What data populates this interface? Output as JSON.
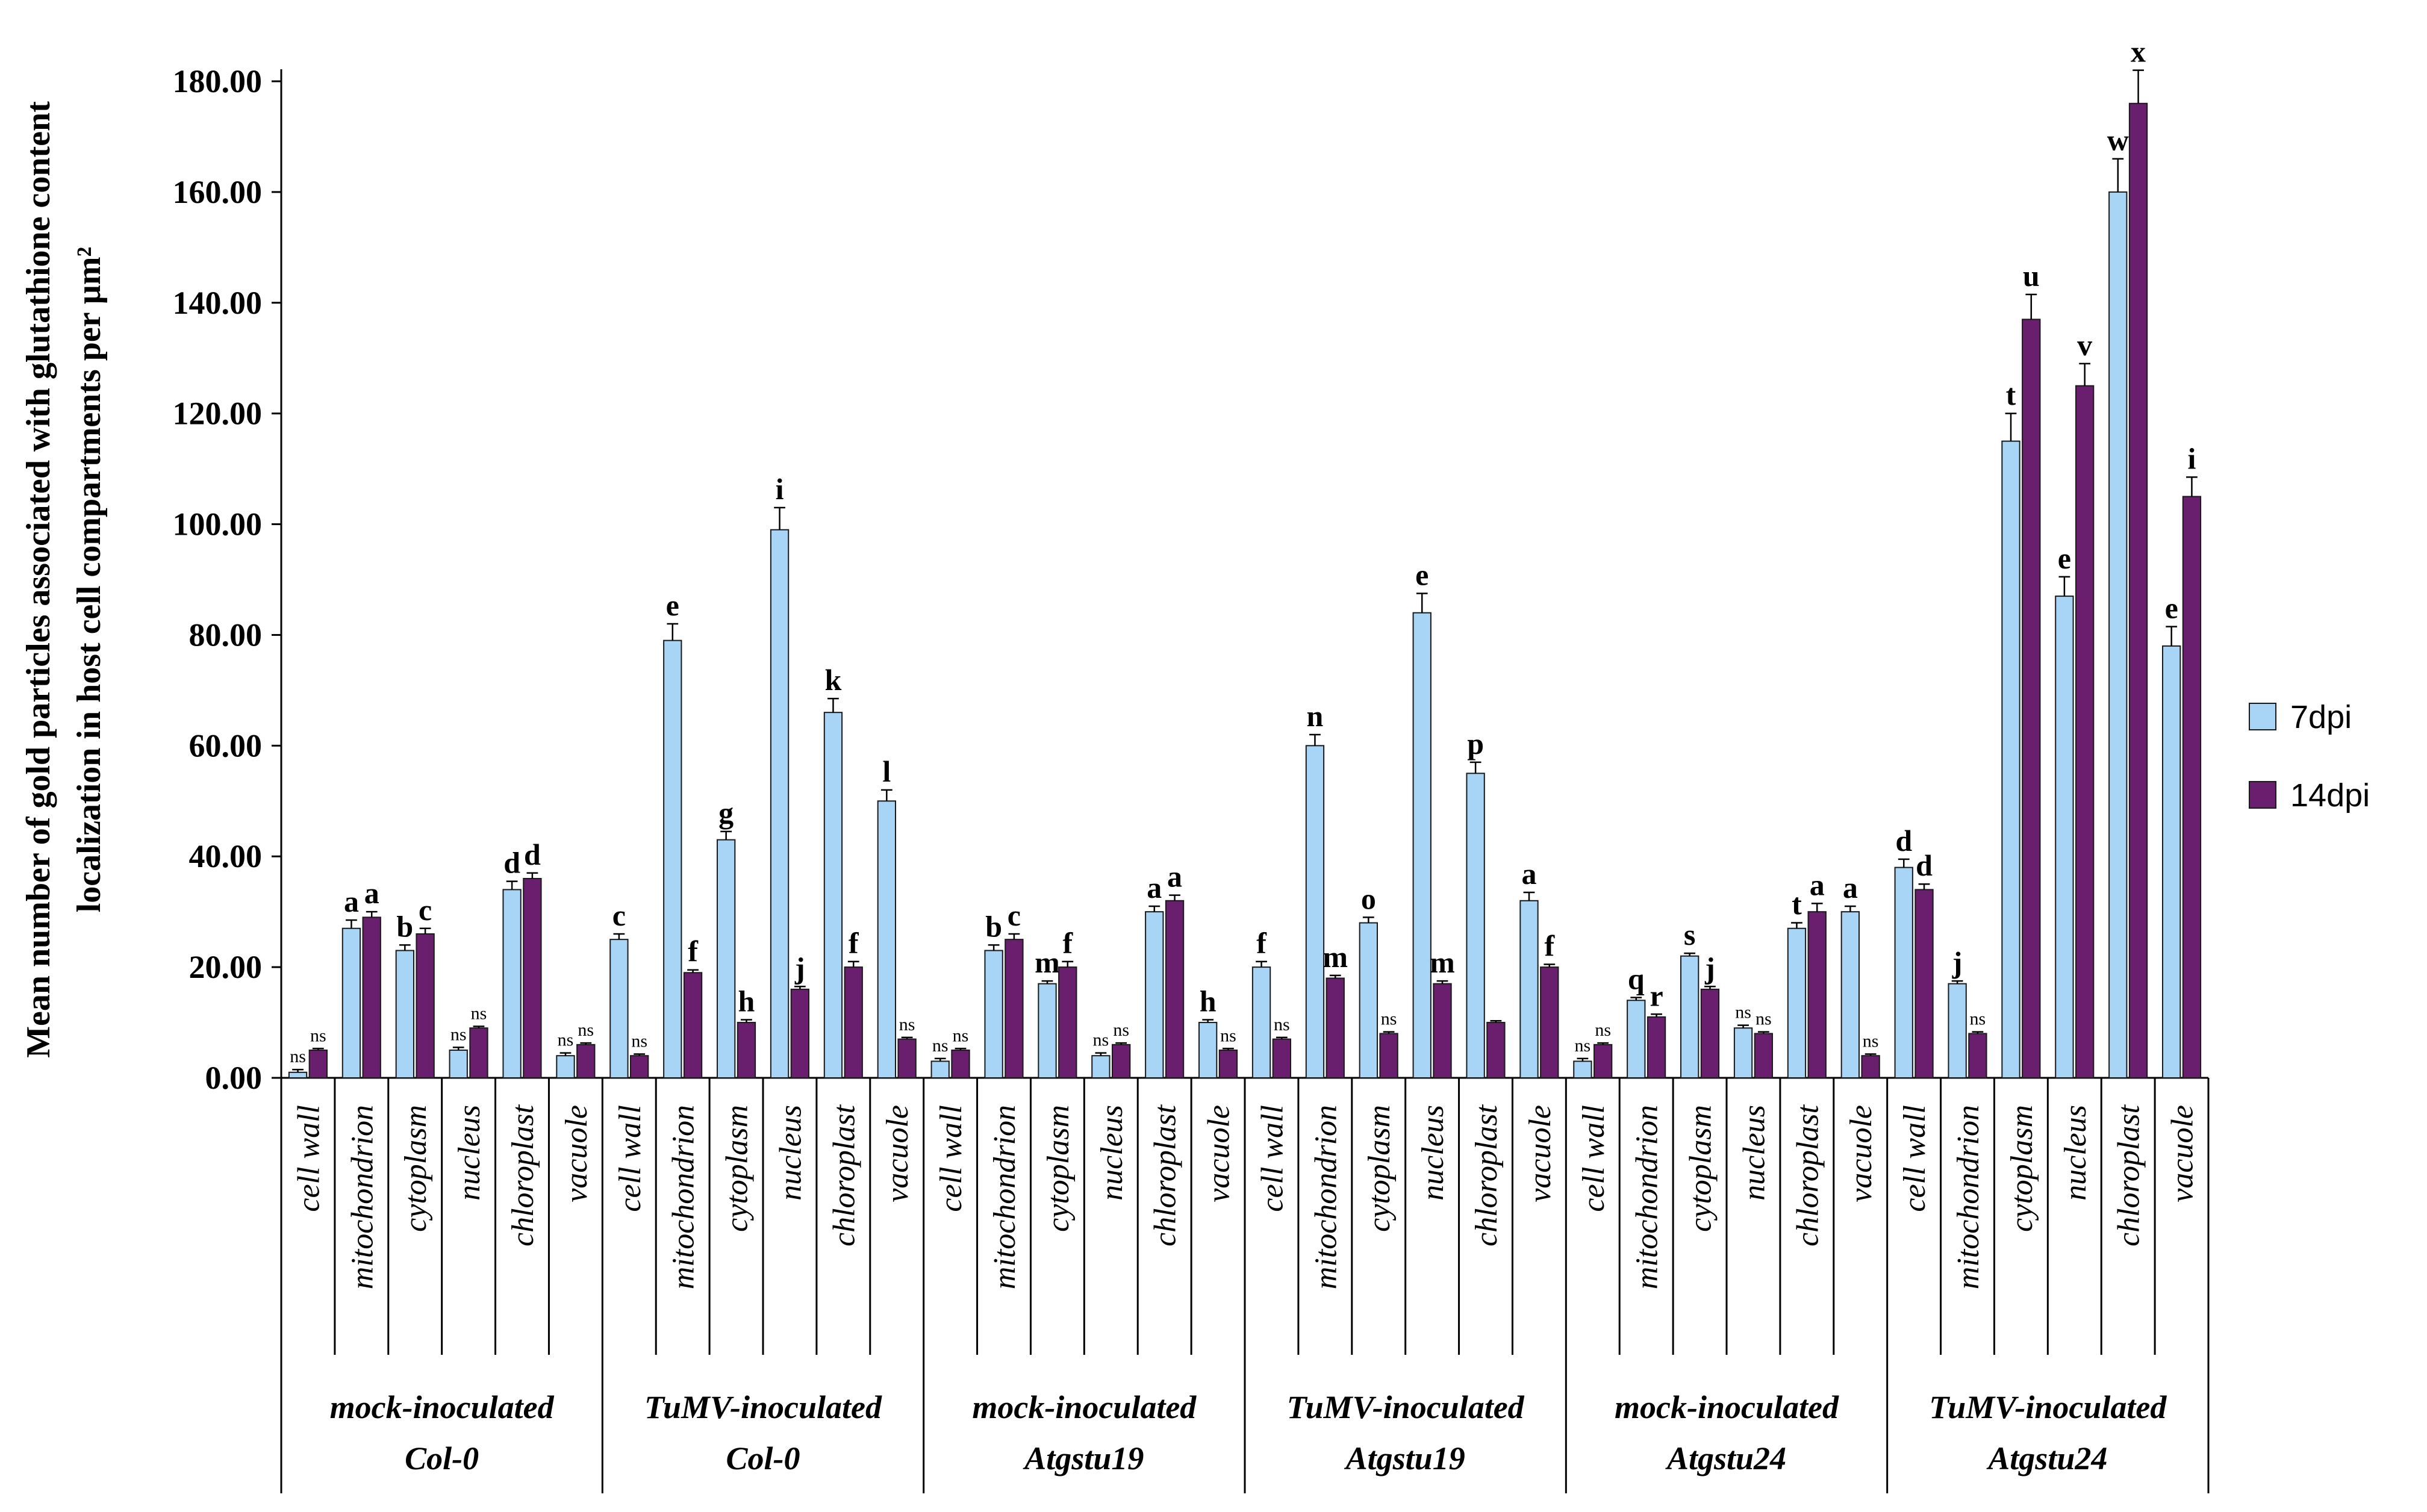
{
  "chart_data": {
    "type": "bar",
    "title": "",
    "ylabel_lines": [
      "Mean number of gold particles associated with glutathione content",
      "localization in host cell compartments per µm²"
    ],
    "xlabel": "",
    "ylim": [
      0,
      180
    ],
    "yticks": [
      0,
      20,
      40,
      60,
      80,
      100,
      120,
      140,
      160,
      180
    ],
    "ytick_labels": [
      "0.00",
      "20.00",
      "40.00",
      "60.00",
      "80.00",
      "100.00",
      "120.00",
      "140.00",
      "160.00",
      "180.00"
    ],
    "compartments": [
      "cell wall",
      "mitochondrion",
      "cytoplasm",
      "nucleus",
      "chloroplast",
      "vacuole"
    ],
    "groups": [
      {
        "line1": "mock-inoculated",
        "line2": "Col-0"
      },
      {
        "line1": "TuMV-inoculated",
        "line2": "Col-0"
      },
      {
        "line1": "mock-inoculated",
        "line2": "Atgstu19"
      },
      {
        "line1": "TuMV-inoculated",
        "line2": "Atgstu19"
      },
      {
        "line1": "mock-inoculated",
        "line2": "Atgstu24"
      },
      {
        "line1": "TuMV-inoculated",
        "line2": "Atgstu24"
      }
    ],
    "legend": {
      "position": "right",
      "entries": [
        "7dpi",
        "14dpi"
      ]
    },
    "series": [
      {
        "name": "7dpi",
        "color": "#a8d4f5",
        "values": [
          1,
          27,
          23,
          5,
          34,
          4,
          25,
          79,
          43,
          99,
          66,
          50,
          3,
          23,
          17,
          4,
          30,
          10,
          20,
          60,
          28,
          84,
          55,
          32,
          3,
          14,
          22,
          9,
          27,
          30,
          38,
          17,
          115,
          87,
          160,
          78
        ],
        "errors": [
          0.5,
          1.5,
          1,
          0.5,
          1.5,
          0.5,
          1,
          3,
          1.5,
          4,
          2.5,
          2,
          0.5,
          1,
          0.5,
          0.5,
          1,
          0.5,
          1,
          2,
          1,
          3.5,
          2,
          1.5,
          0.5,
          0.5,
          0.5,
          0.5,
          1,
          1,
          1.5,
          0.5,
          5,
          3.5,
          6,
          3.5
        ],
        "labels": [
          "ns",
          "a",
          "b",
          "ns",
          "d",
          "ns",
          "c",
          "e",
          "g",
          "i",
          "k",
          "l",
          "ns",
          "b",
          "m",
          "ns",
          "a",
          "h",
          "f",
          "n",
          "o",
          "e",
          "p",
          "a",
          "ns",
          "q",
          "s",
          "ns",
          "t",
          "a",
          "d",
          "j",
          "t",
          "e",
          "w",
          "e"
        ]
      },
      {
        "name": "14dpi",
        "color": "#6a1f6e",
        "values": [
          5,
          29,
          26,
          9,
          36,
          6,
          4,
          19,
          10,
          16,
          20,
          7,
          5,
          25,
          20,
          6,
          32,
          5,
          7,
          18,
          8,
          17,
          10,
          20,
          6,
          11,
          16,
          8,
          30,
          4,
          34,
          8,
          137,
          125,
          176,
          105
        ],
        "errors": [
          0.3,
          1,
          1,
          0.3,
          1,
          0.3,
          0.3,
          0.5,
          0.5,
          0.5,
          1,
          0.3,
          0.3,
          1,
          1,
          0.3,
          1,
          0.3,
          0.3,
          0.5,
          0.3,
          0.5,
          0.3,
          0.5,
          0.3,
          0.5,
          0.5,
          0.3,
          1.5,
          0.3,
          1,
          0.3,
          4.5,
          4,
          6,
          3.5
        ],
        "labels": [
          "ns",
          "a",
          "c",
          "ns",
          "d",
          "ns",
          "ns",
          "f",
          "h",
          "j",
          "f",
          "ns",
          "ns",
          "c",
          "f",
          "ns",
          "a",
          "ns",
          "ns",
          "m",
          "ns",
          "m",
          "",
          "f",
          "ns",
          "r",
          "j",
          "ns",
          "a",
          "ns",
          "d",
          "ns",
          "u",
          "v",
          "x",
          "i"
        ]
      }
    ]
  }
}
